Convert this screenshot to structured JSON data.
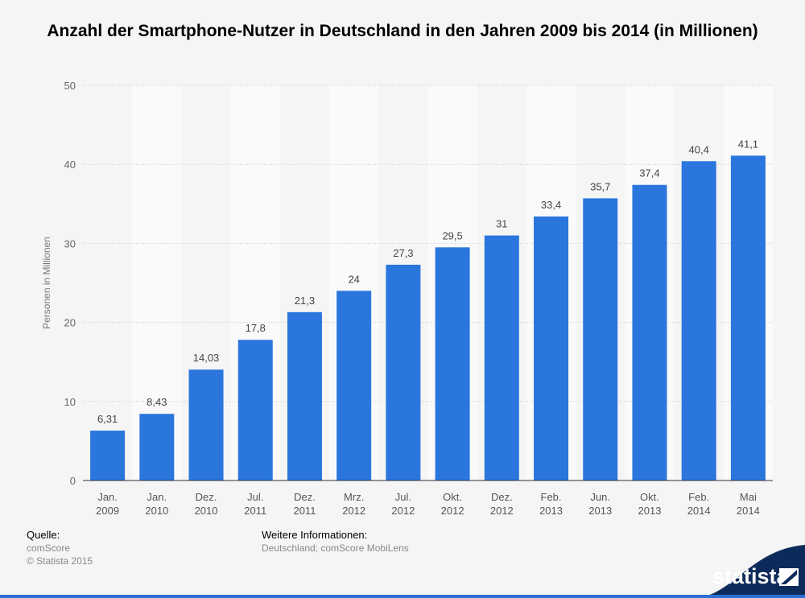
{
  "title": "Anzahl der Smartphone-Nutzer in Deutschland in den Jahren 2009 bis 2014 (in Millionen)",
  "footer": {
    "source_label": "Quelle:",
    "source_value": "comScore",
    "copyright": "© Statista 2015",
    "info_label": "Weitere Informationen:",
    "info_value": "Deutschland; comScore MobiLens"
  },
  "logo_text": "statista",
  "colors": {
    "bar": "#2a76dd",
    "accent": "#1f5fb8",
    "band": "#fafafa"
  },
  "chart_data": {
    "type": "bar",
    "categories": [
      [
        "Jan.",
        "2009"
      ],
      [
        "Jan.",
        "2010"
      ],
      [
        "Dez.",
        "2010"
      ],
      [
        "Jul.",
        "2011"
      ],
      [
        "Dez.",
        "2011"
      ],
      [
        "Mrz.",
        "2012"
      ],
      [
        "Jul.",
        "2012"
      ],
      [
        "Okt.",
        "2012"
      ],
      [
        "Dez.",
        "2012"
      ],
      [
        "Feb.",
        "2013"
      ],
      [
        "Jun.",
        "2013"
      ],
      [
        "Okt.",
        "2013"
      ],
      [
        "Feb.",
        "2014"
      ],
      [
        "Mai",
        "2014"
      ]
    ],
    "values": [
      6.31,
      8.43,
      14.03,
      17.8,
      21.3,
      24,
      27.3,
      29.5,
      31,
      33.4,
      35.7,
      37.4,
      40.4,
      41.1
    ],
    "value_labels": [
      "6,31",
      "8,43",
      "14,03",
      "17,8",
      "21,3",
      "24",
      "27,3",
      "29,5",
      "31",
      "33,4",
      "35,7",
      "37,4",
      "40,4",
      "41,1"
    ],
    "ylabel": "Personen in Millionen",
    "xlabel": "",
    "ylim": [
      0,
      50
    ],
    "yticks": [
      0,
      10,
      20,
      30,
      40,
      50
    ],
    "grid": true
  }
}
